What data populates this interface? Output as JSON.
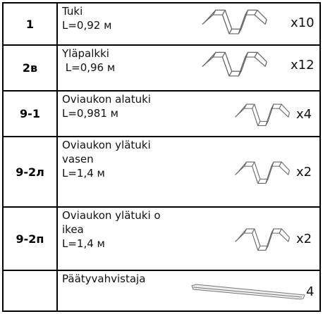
{
  "table": {
    "rows": [
      {
        "code": "1",
        "lines": [
          "Tuki",
          "L=0,92 м"
        ],
        "qty": "x10"
      },
      {
        "code": "2в",
        "lines": [
          "Yläpalkki",
          " L=0,96 м"
        ],
        "qty": "x12"
      },
      {
        "code": "9-1",
        "lines": [
          "Oviaukon alatuki",
          "L=0,981 м"
        ],
        "qty": "x4"
      },
      {
        "code": "9-2л",
        "lines": [
          "Oviaukon ylätuki",
          "vasen",
          "L=1,4 м"
        ],
        "qty": "x2"
      },
      {
        "code": "9-2п",
        "lines": [
          "Oviaukon ylätuki o",
          "ikea",
          "L=1,4 м"
        ],
        "qty": "x2"
      },
      {
        "lines": [
          "Päätyvahvistaja"
        ],
        "qty": "4"
      }
    ]
  }
}
